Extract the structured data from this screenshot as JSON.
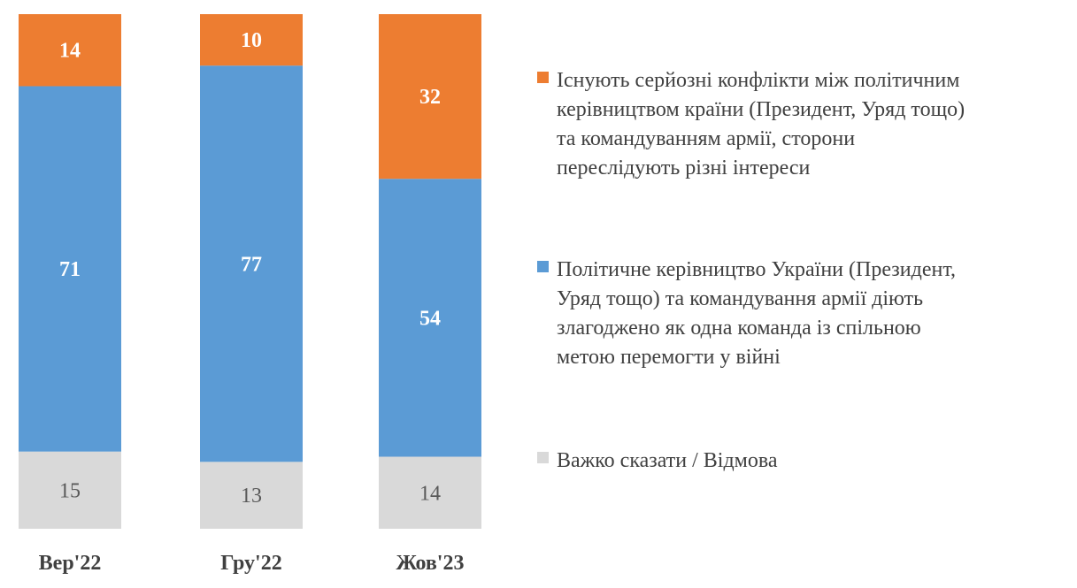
{
  "chart_data": {
    "type": "bar",
    "stacked": true,
    "percent_stacked": true,
    "categories": [
      "Вер'22",
      "Гру'22",
      "Жов'23"
    ],
    "series": [
      {
        "name": "Важко сказати / Відмова",
        "color": "#d9d9d9",
        "values": [
          15,
          13,
          14
        ]
      },
      {
        "name": "Політичне керівництво України (Президент, Уряд тощо) та командування армії діють злагоджено як одна команда із спільною метою перемогти у війні",
        "color": "#5b9bd5",
        "values": [
          71,
          77,
          54
        ]
      },
      {
        "name": "Існують серйозні конфлікти між політичним керівництвом країни (Президент, Уряд тощо) та командуванням армії, сторони переслідують різні інтереси",
        "color": "#ed7d31",
        "values": [
          14,
          10,
          32
        ]
      }
    ],
    "legend_order": [
      2,
      1,
      0
    ],
    "legend_position": "right",
    "legend_lines": [
      [
        "Існують серйозні конфлікти між політичним",
        "керівництвом країни (Президент, Уряд тощо)",
        "та командуванням армії, сторони",
        "переслідують різні інтереси"
      ],
      [
        "Політичне керівництво України (Президент,",
        "Уряд тощо) та командування армії діють",
        "злагоджено як одна команда із спільною",
        "метою перемогти у війні"
      ],
      [
        "Важко сказати / Відмова"
      ]
    ],
    "grid": false,
    "data_labels": true
  }
}
